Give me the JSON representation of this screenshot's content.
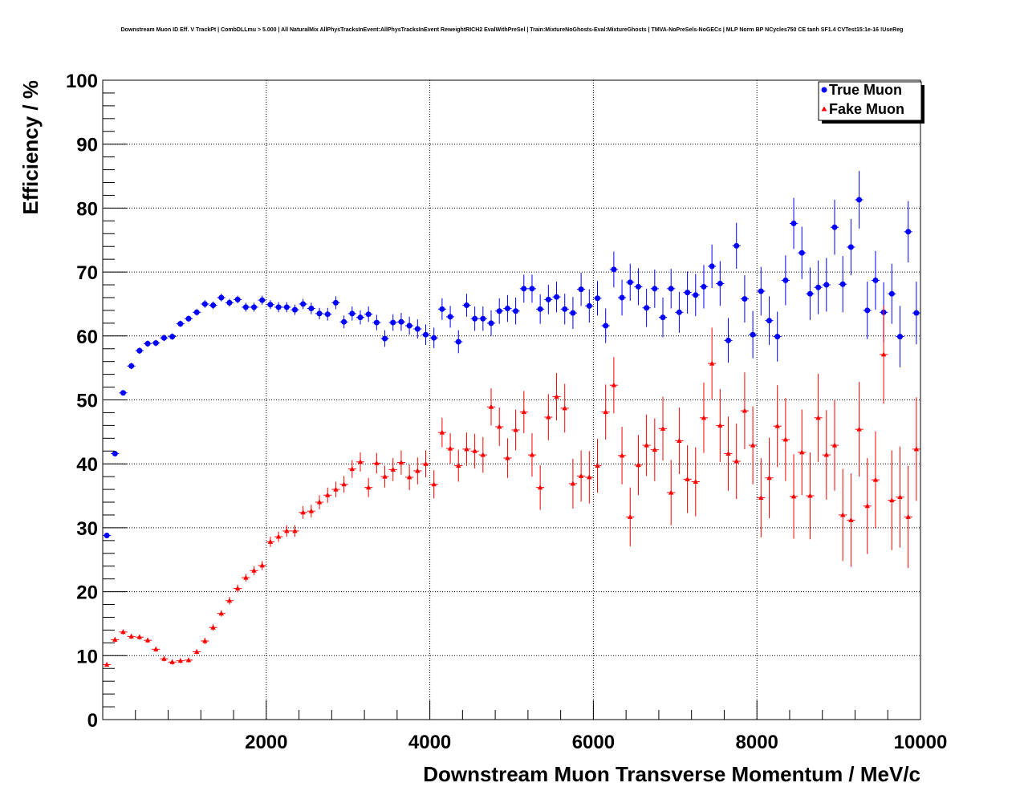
{
  "title": "Downstream Muon ID Eff. V TrackPt | CombDLLmu > 5.000 | All NaturalMix AllPhysTracksInEvent:AllPhysTracksInEvent ReweightRICH2 EvalWithPreSel | Train:MixtureNoGhosts-Eval:MixtureGhosts | TMVA-NoPreSels-NoGECs | MLP Norm BP NCycles750 CE tanh SF1.4 CVTest15:1e-16 !UseReg",
  "chart_data": {
    "type": "scatter",
    "title": "Downstream Muon ID Eff. V TrackPt | CombDLLmu > 5.000 | All NaturalMix AllPhysTracksInEvent:AllPhysTracksInEvent ReweightRICH2 EvalWithPreSel | Train:MixtureNoGhosts-Eval:MixtureGhosts | TMVA-NoPreSels-NoGECs | MLP Norm BP NCycles750 CE tanh SF1.4 CVTest15:1e-16 !UseReg",
    "xlabel": "Downstream Muon Transverse Momentum / MeV/c",
    "ylabel": "Efficiency / %",
    "xlim": [
      0,
      10000
    ],
    "ylim": [
      0,
      100
    ],
    "xticks": [
      2000,
      4000,
      6000,
      8000,
      10000
    ],
    "yticks": [
      0,
      10,
      20,
      30,
      40,
      50,
      60,
      70,
      80,
      90,
      100
    ],
    "grid": true,
    "legend_position": "top-right",
    "series": [
      {
        "name": "True Muon",
        "color": "#0000ff",
        "marker": "circle",
        "x": [
          50,
          150,
          250,
          350,
          450,
          550,
          650,
          750,
          850,
          950,
          1050,
          1150,
          1250,
          1350,
          1450,
          1550,
          1650,
          1750,
          1850,
          1950,
          2050,
          2150,
          2250,
          2350,
          2450,
          2550,
          2650,
          2750,
          2850,
          2950,
          3050,
          3150,
          3250,
          3350,
          3450,
          3550,
          3650,
          3750,
          3850,
          3950,
          4050,
          4150,
          4250,
          4350,
          4450,
          4550,
          4650,
          4750,
          4850,
          4950,
          5050,
          5150,
          5250,
          5350,
          5450,
          5550,
          5650,
          5750,
          5850,
          5950,
          6050,
          6150,
          6250,
          6350,
          6450,
          6550,
          6650,
          6750,
          6850,
          6950,
          7050,
          7150,
          7250,
          7350,
          7450,
          7550,
          7650,
          7750,
          7850,
          7950,
          8050,
          8150,
          8250,
          8350,
          8450,
          8550,
          8650,
          8750,
          8850,
          8950,
          9050,
          9150,
          9250,
          9350,
          9450,
          9550,
          9650,
          9750,
          9850,
          9950
        ],
        "y": [
          28.8,
          41.6,
          51.1,
          55.3,
          57.7,
          58.8,
          58.9,
          59.7,
          59.9,
          61.9,
          62.7,
          63.7,
          65.0,
          64.8,
          66.0,
          65.2,
          65.7,
          64.5,
          64.5,
          65.6,
          64.9,
          64.5,
          64.5,
          64.1,
          65.0,
          64.3,
          63.5,
          63.4,
          65.2,
          62.2,
          63.5,
          62.9,
          63.4,
          62.1,
          59.6,
          62.1,
          62.2,
          61.6,
          61.1,
          60.2,
          59.7,
          64.2,
          63.0,
          59.1,
          64.8,
          62.7,
          62.7,
          62.0,
          63.9,
          64.3,
          63.9,
          67.4,
          67.4,
          64.2,
          65.7,
          66.1,
          64.2,
          63.6,
          67.3,
          64.7,
          65.9,
          61.6,
          70.4,
          66.0,
          68.4,
          67.7,
          64.4,
          67.4,
          62.9,
          67.4,
          63.7,
          66.8,
          66.4,
          67.7,
          70.9,
          68.2,
          59.3,
          74.1,
          65.8,
          60.2,
          67.0,
          62.4,
          59.9,
          68.7,
          77.6,
          73.0,
          66.6,
          67.6,
          68.0,
          77.0,
          68.1,
          73.9,
          81.3,
          64.0,
          68.7,
          63.7,
          66.6,
          59.9,
          76.3,
          63.6
        ],
        "err": [
          0.3,
          0.4,
          0.4,
          0.5,
          0.5,
          0.5,
          0.5,
          0.5,
          0.5,
          0.5,
          0.5,
          0.5,
          0.6,
          0.6,
          0.6,
          0.6,
          0.6,
          0.7,
          0.7,
          0.7,
          0.7,
          0.8,
          0.8,
          0.8,
          0.8,
          0.9,
          0.9,
          1.0,
          1.0,
          1.0,
          1.1,
          1.1,
          1.2,
          1.2,
          1.3,
          1.3,
          1.4,
          1.4,
          1.5,
          1.6,
          1.6,
          1.7,
          1.7,
          1.8,
          1.8,
          1.9,
          1.9,
          2.0,
          2.0,
          2.1,
          2.1,
          2.2,
          2.2,
          2.3,
          2.3,
          2.4,
          2.4,
          2.5,
          2.6,
          2.6,
          2.7,
          2.7,
          2.8,
          2.8,
          2.9,
          2.9,
          3.0,
          3.0,
          3.1,
          3.1,
          3.2,
          3.3,
          3.3,
          3.4,
          3.4,
          3.5,
          3.5,
          3.6,
          3.7,
          3.7,
          3.8,
          3.8,
          3.9,
          3.9,
          4.0,
          4.1,
          4.1,
          4.2,
          4.2,
          4.3,
          4.4,
          4.4,
          4.5,
          4.5,
          4.6,
          4.7,
          4.7,
          4.8,
          4.8,
          4.9
        ]
      },
      {
        "name": "Fake Muon",
        "color": "#ff0000",
        "marker": "triangle",
        "x": [
          50,
          150,
          250,
          350,
          450,
          550,
          650,
          750,
          850,
          950,
          1050,
          1150,
          1250,
          1350,
          1450,
          1550,
          1650,
          1750,
          1850,
          1950,
          2050,
          2150,
          2250,
          2350,
          2450,
          2550,
          2650,
          2750,
          2850,
          2950,
          3050,
          3150,
          3250,
          3350,
          3450,
          3550,
          3650,
          3750,
          3850,
          3950,
          4050,
          4150,
          4250,
          4350,
          4450,
          4550,
          4650,
          4750,
          4850,
          4950,
          5050,
          5150,
          5250,
          5350,
          5450,
          5550,
          5650,
          5750,
          5850,
          5950,
          6050,
          6150,
          6250,
          6350,
          6450,
          6550,
          6650,
          6750,
          6850,
          6950,
          7050,
          7150,
          7250,
          7350,
          7450,
          7550,
          7650,
          7750,
          7850,
          7950,
          8050,
          8150,
          8250,
          8350,
          8450,
          8550,
          8650,
          8750,
          8850,
          8950,
          9050,
          9150,
          9250,
          9350,
          9450,
          9550,
          9650,
          9750,
          9850,
          9950
        ],
        "y": [
          8.6,
          12.5,
          13.7,
          13.0,
          12.9,
          12.4,
          11.0,
          9.5,
          9.0,
          9.2,
          9.3,
          10.6,
          12.3,
          14.4,
          16.6,
          18.6,
          20.5,
          22.2,
          23.3,
          24.1,
          27.8,
          28.6,
          29.5,
          29.5,
          32.4,
          32.6,
          34.0,
          35.1,
          36.0,
          36.8,
          39.2,
          40.3,
          36.3,
          40.1,
          38.0,
          39.1,
          40.2,
          37.9,
          38.9,
          40.0,
          36.8,
          44.9,
          42.4,
          39.7,
          42.3,
          42.0,
          41.4,
          48.9,
          45.8,
          40.9,
          45.3,
          48.1,
          41.4,
          36.3,
          47.3,
          50.5,
          48.7,
          36.9,
          38.1,
          37.9,
          39.7,
          48.1,
          52.3,
          41.3,
          31.7,
          39.8,
          42.9,
          42.2,
          45.5,
          35.5,
          43.6,
          37.6,
          37.2,
          47.2,
          55.7,
          46.0,
          41.6,
          40.4,
          48.3,
          42.9,
          34.7,
          37.8,
          45.9,
          43.8,
          34.9,
          41.8,
          35.0,
          47.2,
          41.4,
          42.9,
          32.0,
          31.2,
          45.4,
          33.4,
          37.5,
          57.1,
          34.3,
          34.8,
          31.7,
          42.3
        ],
        "err": [
          0.3,
          0.4,
          0.4,
          0.4,
          0.4,
          0.4,
          0.4,
          0.4,
          0.4,
          0.4,
          0.4,
          0.4,
          0.5,
          0.5,
          0.5,
          0.6,
          0.6,
          0.6,
          0.7,
          0.7,
          0.8,
          0.8,
          0.9,
          0.9,
          1.0,
          1.0,
          1.1,
          1.2,
          1.2,
          1.3,
          1.4,
          1.5,
          1.5,
          1.6,
          1.7,
          1.8,
          1.9,
          2.0,
          2.1,
          2.1,
          2.2,
          2.3,
          2.4,
          2.5,
          2.6,
          2.7,
          2.8,
          2.9,
          3.0,
          3.1,
          3.2,
          3.3,
          3.4,
          3.5,
          3.6,
          3.7,
          3.8,
          3.9,
          4.0,
          4.1,
          4.2,
          4.3,
          4.4,
          4.5,
          4.6,
          4.7,
          4.8,
          4.9,
          5.0,
          5.1,
          5.2,
          5.3,
          5.4,
          5.5,
          5.6,
          5.7,
          5.8,
          5.9,
          6.0,
          6.1,
          6.2,
          6.3,
          6.4,
          6.5,
          6.6,
          6.7,
          6.8,
          6.9,
          7.0,
          7.1,
          7.2,
          7.3,
          7.4,
          7.5,
          7.6,
          7.7,
          7.8,
          7.9,
          8.0,
          8.1
        ]
      }
    ]
  }
}
